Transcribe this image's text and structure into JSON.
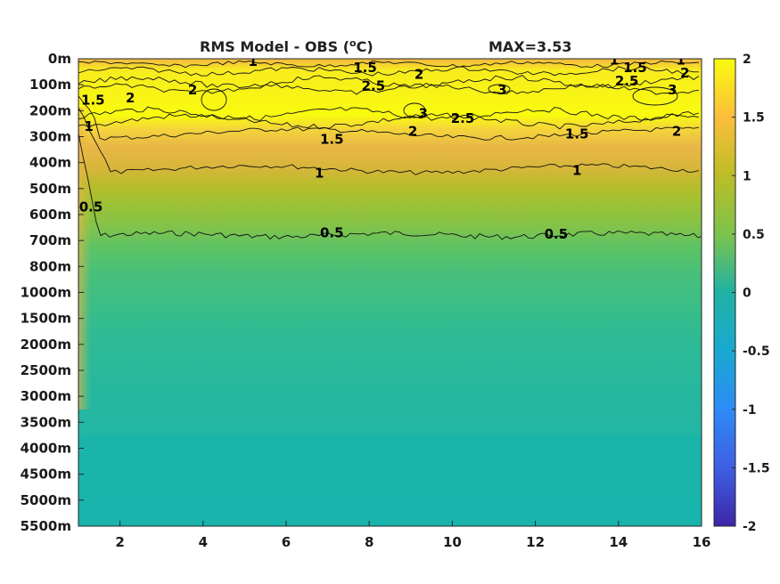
{
  "chart_data": {
    "type": "heatmap",
    "title": "RMS Model - OBS (",
    "title_sup": "o",
    "title_end": "C)",
    "max_label": "MAX=3.53",
    "colormap": "parula",
    "x_ticks": [
      2,
      4,
      6,
      8,
      10,
      12,
      14,
      16
    ],
    "xlim": [
      1,
      16
    ],
    "y_ticks": [
      "0m",
      "100m",
      "200m",
      "300m",
      "400m",
      "500m",
      "600m",
      "700m",
      "800m",
      "1000m",
      "1500m",
      "2000m",
      "2500m",
      "3000m",
      "3500m",
      "4000m",
      "4500m",
      "5000m",
      "5500m"
    ],
    "colorbar": {
      "ticks": [
        "2",
        "1.5",
        "1",
        "0.5",
        "0",
        "-0.5",
        "-1",
        "-1.5",
        "-2"
      ],
      "range": [
        -2,
        2
      ]
    },
    "contour_levels": [
      0.5,
      1,
      1.5,
      2,
      2.5,
      3
    ],
    "contour_labels": [
      {
        "text": "1",
        "x": 5.2,
        "level_row": 0.1
      },
      {
        "text": "1.5",
        "x": 7.9,
        "level_row": 0.35
      },
      {
        "text": "2",
        "x": 9.2,
        "level_row": 0.6
      },
      {
        "text": "1",
        "x": 13.9,
        "level_row": 0.05
      },
      {
        "text": "1.5",
        "x": 14.4,
        "level_row": 0.35
      },
      {
        "text": "1",
        "x": 15.5,
        "level_row": 0.05
      },
      {
        "text": "2",
        "x": 15.6,
        "level_row": 0.55
      },
      {
        "text": "2.5",
        "x": 8.1,
        "level_row": 1.05
      },
      {
        "text": "2.5",
        "x": 14.2,
        "level_row": 0.85
      },
      {
        "text": "3",
        "x": 11.2,
        "level_row": 1.2
      },
      {
        "text": "3",
        "x": 15.3,
        "level_row": 1.2
      },
      {
        "text": "2",
        "x": 2.25,
        "level_row": 1.5
      },
      {
        "text": "2",
        "x": 3.75,
        "level_row": 1.2
      },
      {
        "text": "3",
        "x": 9.3,
        "level_row": 2.1
      },
      {
        "text": "2.5",
        "x": 10.25,
        "level_row": 2.3
      },
      {
        "text": "2",
        "x": 9.05,
        "level_row": 2.8
      },
      {
        "text": "1.5",
        "x": 1.35,
        "level_row": 1.6
      },
      {
        "text": "1",
        "x": 1.25,
        "level_row": 2.6
      },
      {
        "text": "1.5",
        "x": 7.1,
        "level_row": 3.1
      },
      {
        "text": "1.5",
        "x": 13.0,
        "level_row": 2.9
      },
      {
        "text": "2",
        "x": 15.4,
        "level_row": 2.8
      },
      {
        "text": "1",
        "x": 6.8,
        "level_row": 4.4
      },
      {
        "text": "1",
        "x": 13.0,
        "level_row": 4.3
      },
      {
        "text": "0.5",
        "x": 1.3,
        "level_row": 5.7
      },
      {
        "text": "0.5",
        "x": 7.1,
        "level_row": 6.7
      },
      {
        "text": "0.5",
        "x": 12.5,
        "level_row": 6.75
      }
    ]
  }
}
